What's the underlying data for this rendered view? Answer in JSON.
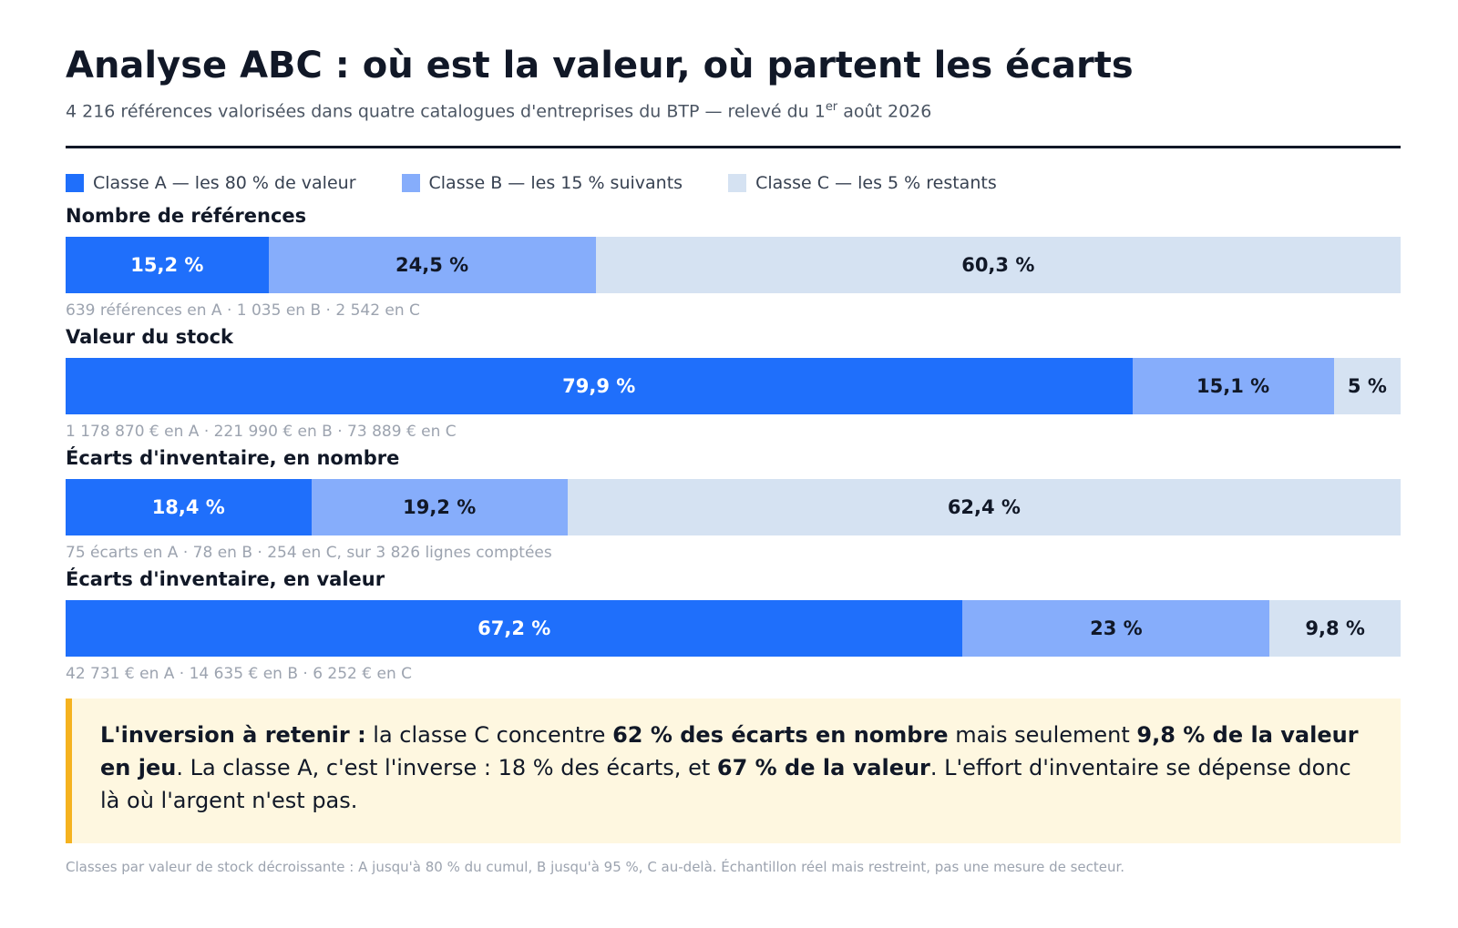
{
  "title": "Analyse ABC : où est la valeur, où partent les écarts",
  "subtitle": {
    "before": "4 216 références valorisées dans quatre catalogues d'entreprises du BTP — relevé du 1",
    "sup": "er",
    "after": " août 2026"
  },
  "legend": [
    {
      "label": "Classe A — les 80 % de valeur",
      "color": "#1f6ffb"
    },
    {
      "label": "Classe B — les 15 % suivants",
      "color": "#86adfb"
    },
    {
      "label": "Classe C — les 5 % restants",
      "color": "#d5e2f2"
    }
  ],
  "chart_data": {
    "type": "bar",
    "stacked": true,
    "orientation": "horizontal",
    "normalized_to": 100,
    "unit": "%",
    "series_names": [
      "Classe A — les 80 % de valeur",
      "Classe B — les 15 % suivants",
      "Classe C — les 5 % restants"
    ],
    "colors": [
      "#1f6ffb",
      "#86adfb",
      "#d5e2f2"
    ],
    "text_colors": [
      "#ffffff",
      "#111827",
      "#111827"
    ],
    "rows": [
      {
        "label": "Nombre de références",
        "values": [
          15.2,
          24.5,
          60.3
        ],
        "value_labels": [
          "15,2 %",
          "24,5 %",
          "60,3 %"
        ],
        "note": "639 références en A · 1 035 en B · 2 542 en C"
      },
      {
        "label": "Valeur du stock",
        "values": [
          79.9,
          15.1,
          5
        ],
        "value_labels": [
          "79,9 %",
          "15,1 %",
          "5 %"
        ],
        "note": "1 178 870 € en A · 221 990 € en B · 73 889 € en C"
      },
      {
        "label": "Écarts d'inventaire, en nombre",
        "values": [
          18.4,
          19.2,
          62.4
        ],
        "value_labels": [
          "18,4 %",
          "19,2 %",
          "62,4 %"
        ],
        "note": "75 écarts en A · 78 en B · 254 en C, sur 3 826 lignes comptées"
      },
      {
        "label": "Écarts d'inventaire, en valeur",
        "values": [
          67.2,
          23,
          9.8
        ],
        "value_labels": [
          "67,2 %",
          "23 %",
          "9,8 %"
        ],
        "note": "42 731 € en A · 14 635 € en B · 6 252 € en C"
      }
    ]
  },
  "callout": {
    "lead": "L'inversion à retenir :",
    "t1": " la classe C concentre ",
    "b1": "62 % des écarts en nombre",
    "t2": " mais seulement ",
    "b2": "9,8 % de la valeur en jeu",
    "t3": ". La classe A, c'est l'inverse : 18 % des écarts, et ",
    "b3": "67 % de la valeur",
    "t4": ". L'effort d'inventaire se dépense donc là où l'argent n'est pas."
  },
  "footer": "Classes par valeur de stock décroissante : A jusqu'à 80 % du cumul, B jusqu'à 95 %, C au-delà. Échantillon réel mais restreint, pas une mesure de secteur."
}
